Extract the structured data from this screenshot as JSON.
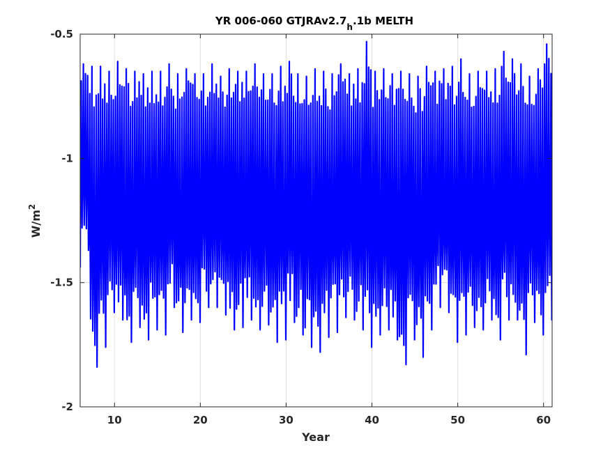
{
  "chart_data": {
    "type": "line",
    "title_main": "YR 006-060 GTJRAv2.7",
    "title_sub": "h",
    "title_tail": ".1b MELTH",
    "xlabel": "Year",
    "ylabel_base": "W/m",
    "ylabel_sup": "2",
    "xlim": [
      6,
      61
    ],
    "ylim": [
      -2,
      -0.5
    ],
    "y_direction": "reversed",
    "grid": true,
    "xticks": [
      10,
      20,
      30,
      40,
      50,
      60
    ],
    "xtick_labels": [
      "10",
      "20",
      "30",
      "40",
      "50",
      "60"
    ],
    "yticks": [
      -0.5,
      -1,
      -1.5,
      -2
    ],
    "ytick_labels": [
      "-0.5",
      "-1",
      "-1.5",
      "-2"
    ],
    "series": [
      {
        "color": "#0000ff",
        "cycles_per_year": 4,
        "year_minima": [
          -1.37,
          -1.84,
          -1.76,
          -1.62,
          -1.65,
          -1.74,
          -1.68,
          -1.73,
          -1.69,
          -1.71,
          -1.6,
          -1.7,
          -1.65,
          -1.66,
          -1.6,
          -1.6,
          -1.63,
          -1.69,
          -1.68,
          -1.65,
          -1.69,
          -1.67,
          -1.74,
          -1.73,
          -1.66,
          -1.71,
          -1.76,
          -1.78,
          -1.72,
          -1.7,
          -1.64,
          -1.65,
          -1.69,
          -1.76,
          -1.71,
          -1.69,
          -1.73,
          -1.83,
          -1.73,
          -1.8,
          -1.69,
          -1.6,
          -1.62,
          -1.74,
          -1.71,
          -1.68,
          -1.69,
          -1.65,
          -1.73,
          -1.65,
          -1.65,
          -1.79,
          -1.66,
          -1.71,
          -1.65
        ],
        "year_maxima": [
          -0.62,
          -0.63,
          -0.63,
          -0.65,
          -0.61,
          -0.64,
          -0.65,
          -0.66,
          -0.65,
          -0.65,
          -0.62,
          -0.66,
          -0.64,
          -0.66,
          -0.66,
          -0.62,
          -0.67,
          -0.64,
          -0.65,
          -0.65,
          -0.62,
          -0.66,
          -0.66,
          -0.63,
          -0.61,
          -0.66,
          -0.67,
          -0.64,
          -0.65,
          -0.66,
          -0.62,
          -0.66,
          -0.64,
          -0.53,
          -0.65,
          -0.64,
          -0.66,
          -0.65,
          -0.66,
          -0.67,
          -0.63,
          -0.65,
          -0.64,
          -0.63,
          -0.6,
          -0.66,
          -0.65,
          -0.65,
          -0.64,
          -0.57,
          -0.6,
          -0.62,
          -0.67,
          -0.64,
          -0.54
        ],
        "start_value": -1.44,
        "end_value": -1.54
      }
    ]
  }
}
